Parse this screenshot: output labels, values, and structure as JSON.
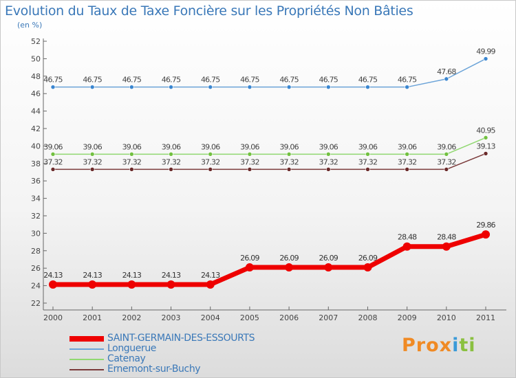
{
  "chart_data": {
    "type": "line",
    "title": "Evolution du Taux de Taxe Foncière sur les Propriétés Non Bâties",
    "ylabel": "(en %)",
    "xlabel": "",
    "x": [
      "2000",
      "2001",
      "2002",
      "2003",
      "2004",
      "2005",
      "2006",
      "2007",
      "2008",
      "2009",
      "2010",
      "2011"
    ],
    "ylim": [
      22,
      52
    ],
    "yticks": [
      22,
      24,
      26,
      28,
      30,
      32,
      34,
      36,
      38,
      40,
      42,
      44,
      46,
      48,
      50,
      52
    ],
    "grid": false,
    "legend_position": "bottom-left",
    "series": [
      {
        "name": "SAINT-GERMAIN-DES-ESSOURTS",
        "color": "#ee0000",
        "width": 7,
        "marker": 6,
        "values": [
          24.13,
          24.13,
          24.13,
          24.13,
          24.13,
          26.09,
          26.09,
          26.09,
          26.09,
          28.48,
          28.48,
          29.86
        ],
        "labels": [
          "24.13",
          "24.13",
          "24.13",
          "24.13",
          "24.13",
          "26.09",
          "26.09",
          "26.09",
          "26.09",
          "28.48",
          "28.48",
          "29.86"
        ]
      },
      {
        "name": "Longuerue",
        "color": "#6aa3d8",
        "width": 1.5,
        "marker": 3,
        "marker_color": "#3a86d0",
        "values": [
          46.75,
          46.75,
          46.75,
          46.75,
          46.75,
          46.75,
          46.75,
          46.75,
          46.75,
          46.75,
          47.68,
          49.99
        ],
        "labels": [
          "46.75",
          "46.75",
          "46.75",
          "46.75",
          "46.75",
          "46.75",
          "46.75",
          "46.75",
          "46.75",
          "46.75",
          "47.68",
          "49.99"
        ]
      },
      {
        "name": "Catenay",
        "color": "#90d870",
        "width": 1.5,
        "marker": 3,
        "marker_color": "#72c040",
        "values": [
          39.06,
          39.06,
          39.06,
          39.06,
          39.06,
          39.06,
          39.06,
          39.06,
          39.06,
          39.06,
          39.06,
          40.95
        ],
        "labels": [
          "39.06",
          "39.06",
          "39.06",
          "39.06",
          "39.06",
          "39.06",
          "39.06",
          "39.06",
          "39.06",
          "39.06",
          "39.06",
          "40.95"
        ]
      },
      {
        "name": "Ernemont-sur-Buchy",
        "color": "#7a3a3a",
        "width": 1.5,
        "marker": 3,
        "marker_color": "#6a2a2a",
        "values": [
          37.32,
          37.32,
          37.32,
          37.32,
          37.32,
          37.32,
          37.32,
          37.32,
          37.32,
          37.32,
          37.32,
          39.13
        ],
        "labels": [
          "37.32",
          "37.32",
          "37.32",
          "37.32",
          "37.32",
          "37.32",
          "37.32",
          "37.32",
          "37.32",
          "37.32",
          "37.32",
          "39.13"
        ]
      }
    ]
  },
  "logo": {
    "text": "Prox",
    "mark": "i",
    "tail": "ti"
  }
}
